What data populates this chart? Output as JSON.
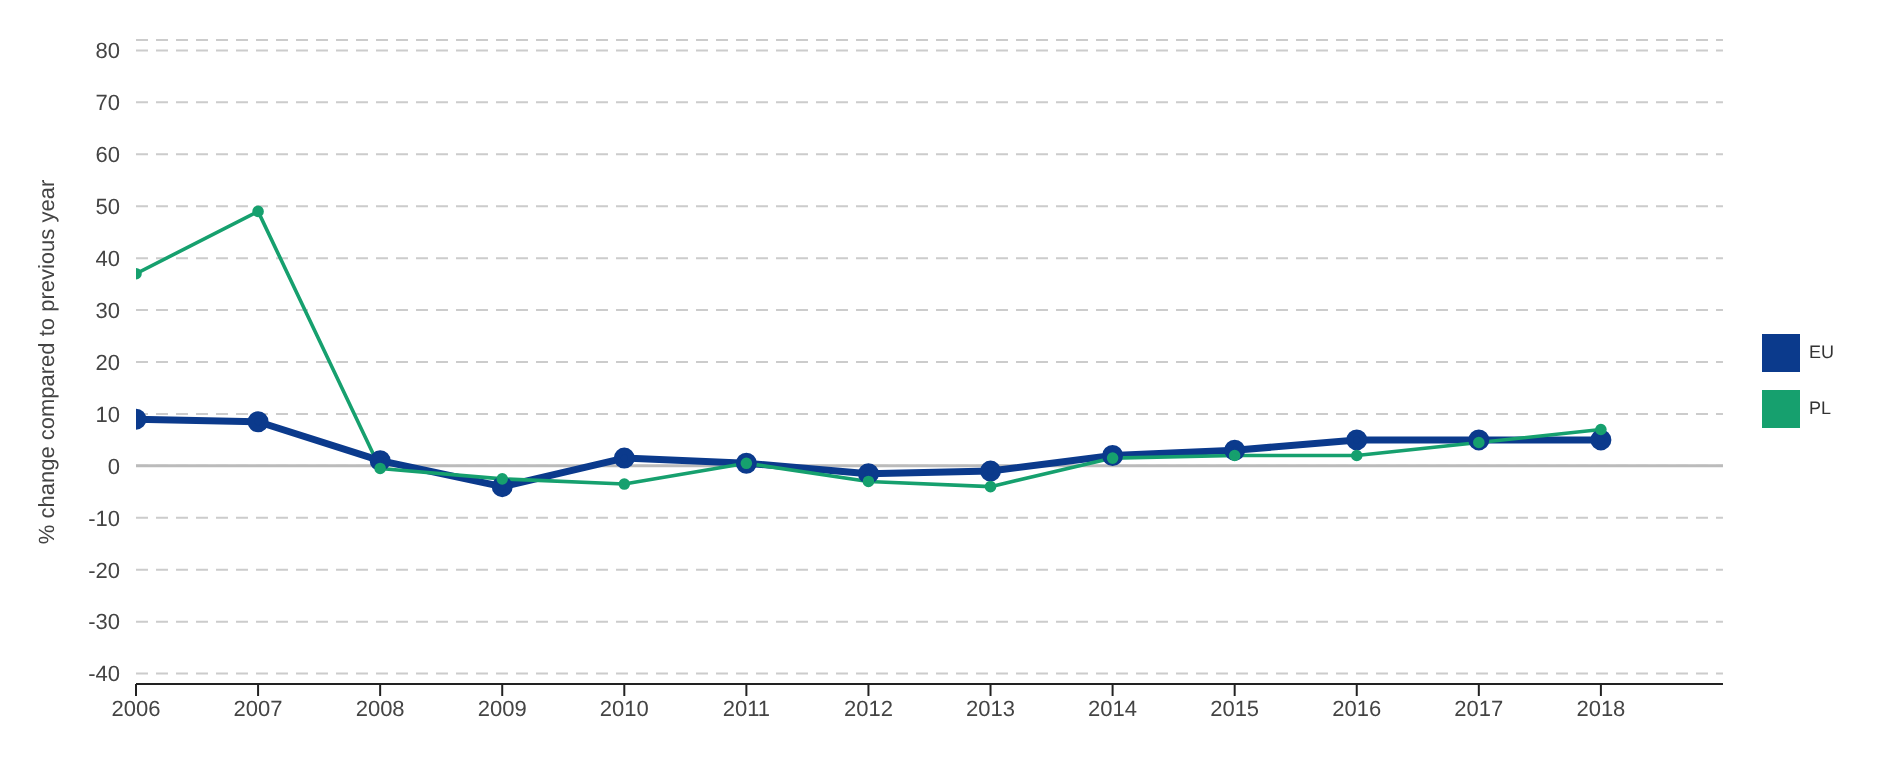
{
  "chart_data": {
    "type": "line",
    "ylabel": "% change compared to previous year",
    "x": [
      2006,
      2007,
      2008,
      2009,
      2010,
      2011,
      2012,
      2013,
      2014,
      2015,
      2016,
      2017,
      2018
    ],
    "series": [
      {
        "name": "EU",
        "color": "#0b3a8c",
        "values": [
          9,
          8.5,
          1,
          -4,
          1.5,
          0.5,
          -1.5,
          -1,
          2,
          3,
          5,
          5,
          5
        ]
      },
      {
        "name": "PL",
        "color": "#16a06e",
        "values": [
          37,
          49,
          -0.5,
          -2.5,
          -3.5,
          0.5,
          -3,
          -4,
          1.5,
          2,
          2,
          4.5,
          7
        ]
      }
    ],
    "xlim": [
      2006,
      2019
    ],
    "xticks": [
      2006,
      2007,
      2008,
      2009,
      2010,
      2011,
      2012,
      2013,
      2014,
      2015,
      2016,
      2017,
      2018
    ],
    "ylim": [
      -42,
      82
    ],
    "yticks": [
      -40,
      -30,
      -20,
      -10,
      0,
      10,
      20,
      30,
      40,
      50,
      60,
      70,
      80
    ],
    "ref_lines": [
      {
        "axis": "y",
        "value": 0,
        "color": "#bbbbbb"
      }
    ],
    "grid": "y",
    "legend": "right",
    "marker": "circle",
    "line_style": "solid"
  }
}
